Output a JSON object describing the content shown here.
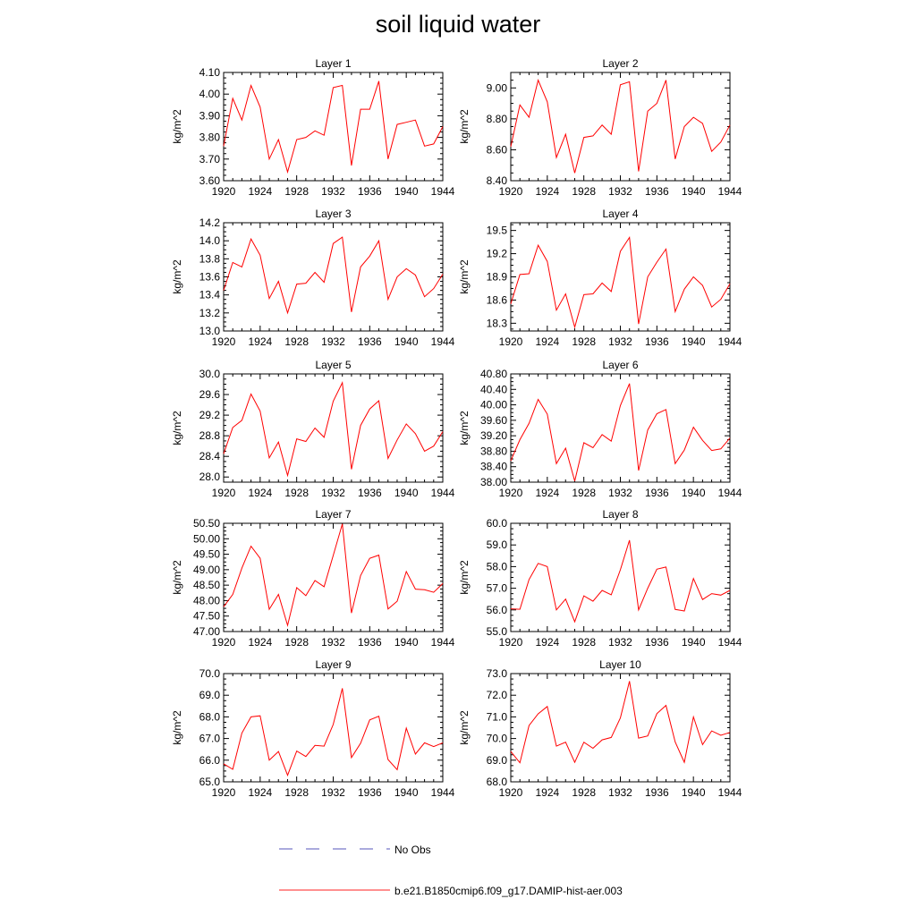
{
  "title": "soil liquid water",
  "legend": {
    "entries": [
      {
        "label": "No Obs",
        "color": "#5555bb",
        "style": "dashed"
      },
      {
        "label": "b.e21.B1850cmip6.f09_g17.DAMIP-hist-aer.003",
        "color": "#ff2222",
        "style": "solid"
      }
    ]
  },
  "chart_data": [
    {
      "type": "line",
      "title": "Layer 1",
      "ylabel": "kg/m^2",
      "xlim": [
        1920,
        1944
      ],
      "ylim": [
        3.6,
        4.1
      ],
      "xticks": [
        1920,
        1924,
        1928,
        1932,
        1936,
        1940,
        1944
      ],
      "yticks": [
        "3.60",
        "3.70",
        "3.80",
        "3.90",
        "4.00",
        "4.10"
      ],
      "series": [
        {
          "color": "#ff0000",
          "x": [
            1920,
            1921,
            1922,
            1923,
            1924,
            1925,
            1926,
            1927,
            1928,
            1929,
            1930,
            1931,
            1932,
            1933,
            1934,
            1935,
            1936,
            1937,
            1938,
            1939,
            1940,
            1941,
            1942,
            1943,
            1944
          ],
          "values": [
            3.76,
            3.98,
            3.88,
            4.04,
            3.94,
            3.7,
            3.79,
            3.64,
            3.79,
            3.8,
            3.83,
            3.81,
            4.03,
            4.04,
            3.67,
            3.93,
            3.93,
            4.06,
            3.7,
            3.86,
            3.87,
            3.88,
            3.76,
            3.77,
            3.85
          ]
        }
      ]
    },
    {
      "type": "line",
      "title": "Layer 2",
      "ylabel": "kg/m^2",
      "xlim": [
        1920,
        1944
      ],
      "ylim": [
        8.4,
        9.1
      ],
      "xticks": [
        1920,
        1924,
        1928,
        1932,
        1936,
        1940,
        1944
      ],
      "yticks": [
        "8.40",
        "8.60",
        "8.80",
        "9.00"
      ],
      "series": [
        {
          "color": "#ff0000",
          "x": [
            1920,
            1921,
            1922,
            1923,
            1924,
            1925,
            1926,
            1927,
            1928,
            1929,
            1930,
            1931,
            1932,
            1933,
            1934,
            1935,
            1936,
            1937,
            1938,
            1939,
            1940,
            1941,
            1942,
            1943,
            1944
          ],
          "values": [
            8.62,
            8.89,
            8.81,
            9.05,
            8.91,
            8.55,
            8.7,
            8.45,
            8.68,
            8.69,
            8.76,
            8.7,
            9.02,
            9.04,
            8.46,
            8.85,
            8.9,
            9.05,
            8.54,
            8.75,
            8.81,
            8.77,
            8.59,
            8.65,
            8.76
          ]
        }
      ]
    },
    {
      "type": "line",
      "title": "Layer 3",
      "ylabel": "kg/m^2",
      "xlim": [
        1920,
        1944
      ],
      "ylim": [
        13.0,
        14.2
      ],
      "xticks": [
        1920,
        1924,
        1928,
        1932,
        1936,
        1940,
        1944
      ],
      "yticks": [
        "13.0",
        "13.2",
        "13.4",
        "13.6",
        "13.8",
        "14.0",
        "14.2"
      ],
      "series": [
        {
          "color": "#ff0000",
          "x": [
            1920,
            1921,
            1922,
            1923,
            1924,
            1925,
            1926,
            1927,
            1928,
            1929,
            1930,
            1931,
            1932,
            1933,
            1934,
            1935,
            1936,
            1937,
            1938,
            1939,
            1940,
            1941,
            1942,
            1943,
            1944
          ],
          "values": [
            13.45,
            13.76,
            13.71,
            14.02,
            13.84,
            13.36,
            13.55,
            13.2,
            13.52,
            13.53,
            13.65,
            13.54,
            13.97,
            14.04,
            13.21,
            13.71,
            13.83,
            14.0,
            13.35,
            13.6,
            13.69,
            13.62,
            13.38,
            13.47,
            13.63
          ]
        }
      ]
    },
    {
      "type": "line",
      "title": "Layer 4",
      "ylabel": "kg/m^2",
      "xlim": [
        1920,
        1944
      ],
      "ylim": [
        18.2,
        19.6
      ],
      "xticks": [
        1920,
        1924,
        1928,
        1932,
        1936,
        1940,
        1944
      ],
      "yticks": [
        "18.3",
        "18.6",
        "18.9",
        "19.2",
        "19.5"
      ],
      "series": [
        {
          "color": "#ff0000",
          "x": [
            1920,
            1921,
            1922,
            1923,
            1924,
            1925,
            1926,
            1927,
            1928,
            1929,
            1930,
            1931,
            1932,
            1933,
            1934,
            1935,
            1936,
            1937,
            1938,
            1939,
            1940,
            1941,
            1942,
            1943,
            1944
          ],
          "values": [
            18.55,
            18.93,
            18.94,
            19.31,
            19.1,
            18.47,
            18.68,
            18.25,
            18.67,
            18.68,
            18.82,
            18.71,
            19.23,
            19.41,
            18.29,
            18.9,
            19.09,
            19.26,
            18.45,
            18.74,
            18.9,
            18.79,
            18.51,
            18.61,
            18.81
          ]
        }
      ]
    },
    {
      "type": "line",
      "title": "Layer 5",
      "ylabel": "kg/m^2",
      "xlim": [
        1920,
        1944
      ],
      "ylim": [
        27.9,
        30.0
      ],
      "xticks": [
        1920,
        1924,
        1928,
        1932,
        1936,
        1940,
        1944
      ],
      "yticks": [
        "28.0",
        "28.4",
        "28.8",
        "29.2",
        "29.6",
        "30.0"
      ],
      "series": [
        {
          "color": "#ff0000",
          "x": [
            1920,
            1921,
            1922,
            1923,
            1924,
            1925,
            1926,
            1927,
            1928,
            1929,
            1930,
            1931,
            1932,
            1933,
            1934,
            1935,
            1936,
            1937,
            1938,
            1939,
            1940,
            1941,
            1942,
            1943,
            1944
          ],
          "values": [
            28.45,
            28.96,
            29.1,
            29.61,
            29.28,
            28.37,
            28.68,
            28.03,
            28.74,
            28.69,
            28.95,
            28.77,
            29.47,
            29.83,
            28.15,
            29.0,
            29.32,
            29.48,
            28.36,
            28.72,
            29.03,
            28.84,
            28.5,
            28.6,
            28.88
          ]
        }
      ]
    },
    {
      "type": "line",
      "title": "Layer 6",
      "ylabel": "kg/m^2",
      "xlim": [
        1920,
        1944
      ],
      "ylim": [
        38.0,
        40.8
      ],
      "xticks": [
        1920,
        1924,
        1928,
        1932,
        1936,
        1940,
        1944
      ],
      "yticks": [
        "38.00",
        "38.40",
        "38.80",
        "39.20",
        "39.60",
        "40.00",
        "40.40",
        "40.80"
      ],
      "series": [
        {
          "color": "#ff0000",
          "x": [
            1920,
            1921,
            1922,
            1923,
            1924,
            1925,
            1926,
            1927,
            1928,
            1929,
            1930,
            1931,
            1932,
            1933,
            1934,
            1935,
            1936,
            1937,
            1938,
            1939,
            1940,
            1941,
            1942,
            1943,
            1944
          ],
          "values": [
            38.55,
            39.1,
            39.52,
            40.14,
            39.76,
            38.48,
            38.88,
            38.03,
            39.02,
            38.89,
            39.23,
            39.06,
            39.98,
            40.55,
            38.3,
            39.35,
            39.77,
            39.88,
            38.48,
            38.83,
            39.42,
            39.08,
            38.82,
            38.86,
            39.14
          ]
        }
      ]
    },
    {
      "type": "line",
      "title": "Layer 7",
      "ylabel": "kg/m^2",
      "xlim": [
        1920,
        1944
      ],
      "ylim": [
        47.0,
        50.5
      ],
      "xticks": [
        1920,
        1924,
        1928,
        1932,
        1936,
        1940,
        1944
      ],
      "yticks": [
        "47.00",
        "47.50",
        "48.00",
        "48.50",
        "49.00",
        "49.50",
        "50.00",
        "50.50"
      ],
      "series": [
        {
          "color": "#ff0000",
          "x": [
            1920,
            1921,
            1922,
            1923,
            1924,
            1925,
            1926,
            1927,
            1928,
            1929,
            1930,
            1931,
            1932,
            1933,
            1934,
            1935,
            1936,
            1937,
            1938,
            1939,
            1940,
            1941,
            1942,
            1943,
            1944
          ],
          "values": [
            47.8,
            48.2,
            49.05,
            49.76,
            49.37,
            47.72,
            48.2,
            47.2,
            48.42,
            48.16,
            48.65,
            48.45,
            49.46,
            50.48,
            47.6,
            48.81,
            49.37,
            49.47,
            47.73,
            47.98,
            48.94,
            48.37,
            48.35,
            48.27,
            48.55
          ]
        }
      ]
    },
    {
      "type": "line",
      "title": "Layer 8",
      "ylabel": "kg/m^2",
      "xlim": [
        1920,
        1944
      ],
      "ylim": [
        55.0,
        60.0
      ],
      "xticks": [
        1920,
        1924,
        1928,
        1932,
        1936,
        1940,
        1944
      ],
      "yticks": [
        "55.0",
        "56.0",
        "57.0",
        "58.0",
        "59.0",
        "60.0"
      ],
      "series": [
        {
          "color": "#ff0000",
          "x": [
            1920,
            1921,
            1922,
            1923,
            1924,
            1925,
            1926,
            1927,
            1928,
            1929,
            1930,
            1931,
            1932,
            1933,
            1934,
            1935,
            1936,
            1937,
            1938,
            1939,
            1940,
            1941,
            1942,
            1943,
            1944
          ],
          "values": [
            56.05,
            56.03,
            57.4,
            58.15,
            58.0,
            56.0,
            56.5,
            55.45,
            56.65,
            56.4,
            56.9,
            56.7,
            57.85,
            59.22,
            56.0,
            57.0,
            57.88,
            57.98,
            56.02,
            55.95,
            57.45,
            56.48,
            56.75,
            56.68,
            56.9
          ]
        }
      ]
    },
    {
      "type": "line",
      "title": "Layer 9",
      "ylabel": "kg/m^2",
      "xlim": [
        1920,
        1944
      ],
      "ylim": [
        65.0,
        70.0
      ],
      "xticks": [
        1920,
        1924,
        1928,
        1932,
        1936,
        1940,
        1944
      ],
      "yticks": [
        "65.0",
        "66.0",
        "67.0",
        "68.0",
        "69.0",
        "70.0"
      ],
      "series": [
        {
          "color": "#ff0000",
          "x": [
            1920,
            1921,
            1922,
            1923,
            1924,
            1925,
            1926,
            1927,
            1928,
            1929,
            1930,
            1931,
            1932,
            1933,
            1934,
            1935,
            1936,
            1937,
            1938,
            1939,
            1940,
            1941,
            1942,
            1943,
            1944
          ],
          "values": [
            65.83,
            65.58,
            67.25,
            68.0,
            68.05,
            66.0,
            66.4,
            65.3,
            66.42,
            66.17,
            66.68,
            66.65,
            67.65,
            69.32,
            66.12,
            66.78,
            67.86,
            68.03,
            66.03,
            65.56,
            67.48,
            66.28,
            66.8,
            66.63,
            66.8
          ]
        }
      ]
    },
    {
      "type": "line",
      "title": "Layer 10",
      "ylabel": "kg/m^2",
      "xlim": [
        1920,
        1944
      ],
      "ylim": [
        68.0,
        73.0
      ],
      "xticks": [
        1920,
        1924,
        1928,
        1932,
        1936,
        1940,
        1944
      ],
      "yticks": [
        "68.0",
        "69.0",
        "70.0",
        "71.0",
        "72.0",
        "73.0"
      ],
      "series": [
        {
          "color": "#ff0000",
          "x": [
            1920,
            1921,
            1922,
            1923,
            1924,
            1925,
            1926,
            1927,
            1928,
            1929,
            1930,
            1931,
            1932,
            1933,
            1934,
            1935,
            1936,
            1937,
            1938,
            1939,
            1940,
            1941,
            1942,
            1943,
            1944
          ],
          "values": [
            69.4,
            68.88,
            70.6,
            71.14,
            71.48,
            69.65,
            69.83,
            68.9,
            69.83,
            69.55,
            69.94,
            70.05,
            70.95,
            72.65,
            70.02,
            70.12,
            71.15,
            71.53,
            69.84,
            68.9,
            71.0,
            69.72,
            70.35,
            70.15,
            70.28
          ]
        }
      ]
    }
  ]
}
